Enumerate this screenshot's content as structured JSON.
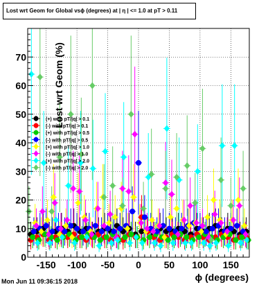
{
  "title": "Lost wrt Geom for Global vsϕ (degrees) at | η | <= 1.0 at pT > 0.11",
  "timestamp": "Mon Jun 11 09:36:15 2018",
  "chart_data": {
    "type": "scatter",
    "xlabel": "ϕ (degrees)",
    "ylabel": "Lost wrt Geom (%)",
    "xlim": [
      -180,
      180
    ],
    "ylim": [
      0,
      80
    ],
    "x_ticks": [
      -150,
      -100,
      -50,
      0,
      50,
      100,
      150
    ],
    "y_ticks": [
      0,
      10,
      20,
      30,
      40,
      50,
      60,
      70
    ],
    "grid": true,
    "legend_position": "left",
    "series": [
      {
        "name": "(+) with pT/|q| > 0.1",
        "color": "#000000",
        "marker": "circle",
        "x": [
          -175,
          -165,
          -155,
          -145,
          -135,
          -125,
          -115,
          -105,
          -95,
          -85,
          -75,
          -65,
          -55,
          -45,
          -35,
          -25,
          -15,
          -5,
          5,
          15,
          25,
          35,
          45,
          55,
          65,
          75,
          85,
          95,
          105,
          115,
          125,
          135,
          145,
          155,
          165,
          175
        ],
        "y": [
          8,
          9,
          10,
          8,
          9,
          10,
          9,
          11,
          9,
          10,
          8,
          9,
          10,
          9,
          11,
          9,
          10,
          8,
          9,
          9,
          8,
          10,
          9,
          9,
          10,
          9,
          8,
          10,
          9,
          10,
          11,
          9,
          10,
          9,
          8,
          9
        ]
      },
      {
        "name": "(-) with pT/|q| > 0.1",
        "color": "#ff0000",
        "marker": "circle",
        "x": [
          -175,
          -165,
          -155,
          -145,
          -135,
          -125,
          -115,
          -105,
          -95,
          -85,
          -75,
          -65,
          -55,
          -45,
          -35,
          -25,
          -15,
          -5,
          5,
          15,
          25,
          35,
          45,
          55,
          65,
          75,
          85,
          95,
          105,
          115,
          125,
          135,
          145,
          155,
          165,
          175
        ],
        "y": [
          6,
          7,
          8,
          6,
          7,
          8,
          7,
          8,
          7,
          6,
          7,
          8,
          7,
          6,
          7,
          6,
          8,
          7,
          14,
          9,
          7,
          6,
          7,
          8,
          7,
          6,
          7,
          8,
          7,
          6,
          7,
          8,
          7,
          6,
          7,
          7
        ]
      },
      {
        "name": "(+) with pT/|q| > 0.5",
        "color": "#00cc00",
        "marker": "circle",
        "x": [
          -172,
          -162,
          -152,
          -142,
          -132,
          -122,
          -112,
          -102,
          -92,
          -82,
          -72,
          -62,
          -52,
          -42,
          -32,
          -22,
          -12,
          -2,
          8,
          18,
          28,
          38,
          48,
          58,
          68,
          78,
          88,
          98,
          108,
          118,
          128,
          138,
          148,
          158,
          168,
          178
        ],
        "y": [
          7,
          6,
          8,
          7,
          6,
          7,
          8,
          6,
          7,
          8,
          7,
          6,
          7,
          8,
          6,
          7,
          8,
          7,
          6,
          7,
          8,
          7,
          6,
          7,
          8,
          7,
          6,
          7,
          8,
          7,
          6,
          7,
          8,
          6,
          7,
          6
        ]
      },
      {
        "name": "(-) with pT/|q| > 0.5",
        "color": "#0000ff",
        "marker": "circle",
        "x": [
          -170,
          -160,
          -150,
          -140,
          -130,
          -120,
          -110,
          -100,
          -90,
          -80,
          -70,
          -60,
          -50,
          -40,
          -30,
          -20,
          -10,
          0,
          10,
          20,
          30,
          40,
          50,
          60,
          70,
          80,
          90,
          100,
          110,
          120,
          130,
          140,
          150,
          160,
          170
        ],
        "y": [
          9,
          10,
          11,
          9,
          10,
          9,
          11,
          10,
          9,
          10,
          11,
          9,
          10,
          9,
          10,
          11,
          16,
          33,
          14,
          10,
          9,
          11,
          10,
          9,
          10,
          11,
          12,
          10,
          9,
          10,
          11,
          9,
          10,
          11,
          9
        ]
      },
      {
        "name": "(+) with pT/|q| > 1.0",
        "color": "#ffff00",
        "marker": "diamond",
        "x": [
          -168,
          -158,
          -148,
          -138,
          -128,
          -118,
          -108,
          -98,
          -88,
          -78,
          -68,
          -58,
          -48,
          -38,
          -28,
          -18,
          -8,
          2,
          12,
          22,
          32,
          42,
          52,
          62,
          72,
          82,
          92,
          102,
          112,
          122,
          132,
          142,
          152,
          162,
          172
        ],
        "y": [
          12,
          9,
          13,
          21,
          8,
          11,
          7,
          19,
          14,
          9,
          17,
          21,
          12,
          14,
          17,
          10,
          21,
          12,
          9,
          13,
          11,
          7,
          14,
          17,
          13,
          11,
          12,
          9,
          14,
          20,
          13,
          8,
          13,
          20,
          11
        ]
      },
      {
        "name": "(-) with pT/|q| > 1.0",
        "color": "#ff00ff",
        "marker": "diamond",
        "x": [
          -166,
          -156,
          -146,
          -136,
          -126,
          -116,
          -106,
          -96,
          -86,
          -76,
          -66,
          -56,
          -46,
          -36,
          -26,
          -16,
          -6,
          4,
          14,
          24,
          34,
          44,
          54,
          64,
          74,
          84,
          94,
          104,
          114,
          124,
          134,
          144,
          154,
          164,
          174
        ],
        "y": [
          11,
          16,
          8,
          19,
          10,
          13,
          24,
          23,
          13,
          8,
          17,
          11,
          15,
          7,
          24,
          23,
          43,
          12,
          10,
          9,
          11,
          26,
          22,
          8,
          13,
          18,
          12,
          11,
          7,
          15,
          12,
          9,
          13,
          18,
          8
        ]
      },
      {
        "name": "(+) with pT/|q| > 2.0",
        "color": "#00ffff",
        "marker": "diamond",
        "x": [
          -174,
          -164,
          -154,
          -144,
          -134,
          -124,
          -114,
          -104,
          -94,
          -84,
          -74,
          -64,
          -54,
          -44,
          -34,
          -24,
          -14,
          -4,
          6,
          16,
          26,
          36,
          46,
          56,
          66,
          76,
          86,
          96,
          106,
          116,
          126,
          136,
          146,
          156,
          166,
          176
        ],
        "y": [
          64,
          5,
          33,
          5,
          13,
          7,
          25,
          5,
          33,
          7,
          31,
          4,
          37,
          5,
          6,
          35,
          5,
          7,
          5,
          28,
          5,
          4,
          45,
          5,
          27,
          5,
          5,
          30,
          5,
          4,
          5,
          39,
          4,
          39,
          5,
          6
        ]
      },
      {
        "name": "(-) with pT/|q| > 2.0",
        "color": "#66cc66",
        "marker": "diamond",
        "x": [
          -178,
          -160,
          -141,
          -128,
          -110,
          -93,
          -75,
          -56,
          -42,
          -26,
          -12,
          8,
          21,
          44,
          62,
          79,
          92,
          104,
          118,
          134,
          150,
          170
        ],
        "y": [
          16,
          63,
          16,
          35,
          50,
          36,
          60,
          21,
          25,
          18,
          50,
          17,
          29,
          24,
          28,
          32,
          19,
          38,
          6,
          27,
          18,
          24
        ]
      }
    ]
  }
}
